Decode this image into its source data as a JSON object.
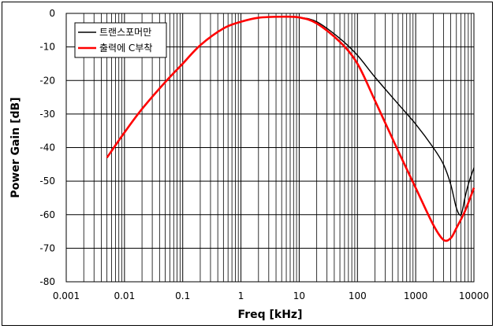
{
  "chart_data": {
    "type": "line",
    "title": "",
    "xlabel": "Freq [kHz]",
    "ylabel": "Power Gain [dB]",
    "xscale": "log",
    "xlim": [
      0.001,
      10000
    ],
    "ylim": [
      -80,
      0
    ],
    "x_ticks": [
      "0.001",
      "0.01",
      "0.1",
      "1",
      "10",
      "100",
      "1000",
      "10000"
    ],
    "y_ticks": [
      "0",
      "-10",
      "-20",
      "-30",
      "-40",
      "-50",
      "-60",
      "-70",
      "-80"
    ],
    "grid": true,
    "legend_position": "top-left",
    "series": [
      {
        "name": "트랜스포머만",
        "color": "#000000",
        "points": [
          [
            0.005,
            -43
          ],
          [
            0.01,
            -35.5
          ],
          [
            0.02,
            -28.5
          ],
          [
            0.05,
            -20.5
          ],
          [
            0.1,
            -15
          ],
          [
            0.2,
            -9.5
          ],
          [
            0.5,
            -4.5
          ],
          [
            1,
            -2.5
          ],
          [
            2,
            -1.3
          ],
          [
            5,
            -1
          ],
          [
            10,
            -1.2
          ],
          [
            20,
            -2.5
          ],
          [
            50,
            -7.5
          ],
          [
            100,
            -12.5
          ],
          [
            200,
            -19
          ],
          [
            500,
            -27
          ],
          [
            1000,
            -33
          ],
          [
            2000,
            -40
          ],
          [
            3000,
            -45
          ],
          [
            4000,
            -51
          ],
          [
            5000,
            -58
          ],
          [
            6000,
            -60
          ],
          [
            7000,
            -55
          ],
          [
            8000,
            -51
          ],
          [
            10000,
            -46
          ]
        ]
      },
      {
        "name": "출력에 C부착",
        "color": "#ff0000",
        "points": [
          [
            0.005,
            -43
          ],
          [
            0.01,
            -35.5
          ],
          [
            0.02,
            -28.5
          ],
          [
            0.05,
            -20.5
          ],
          [
            0.1,
            -15
          ],
          [
            0.2,
            -9.5
          ],
          [
            0.5,
            -4.5
          ],
          [
            1,
            -2.5
          ],
          [
            2,
            -1.3
          ],
          [
            5,
            -1
          ],
          [
            10,
            -1.2
          ],
          [
            20,
            -3
          ],
          [
            50,
            -8.5
          ],
          [
            100,
            -15
          ],
          [
            200,
            -26
          ],
          [
            500,
            -41
          ],
          [
            1000,
            -52
          ],
          [
            2000,
            -63
          ],
          [
            3000,
            -67.5
          ],
          [
            4000,
            -67
          ],
          [
            5000,
            -64
          ],
          [
            7000,
            -59
          ],
          [
            10000,
            -52
          ]
        ]
      }
    ]
  }
}
